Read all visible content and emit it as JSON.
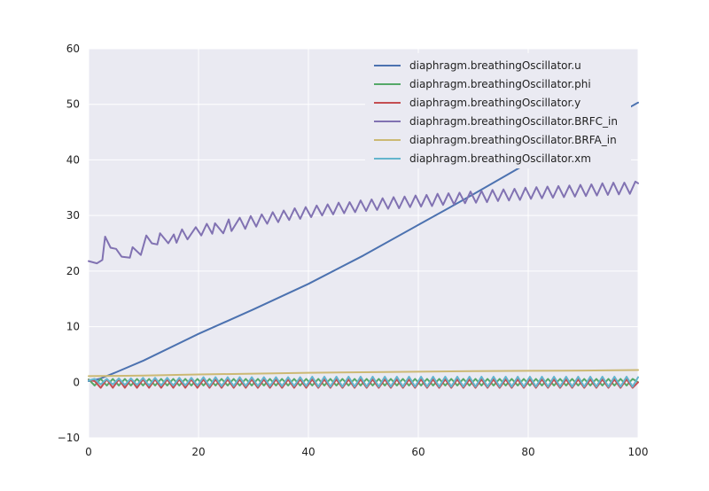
{
  "chart_data": {
    "type": "line",
    "title": "",
    "xlabel": "",
    "ylabel": "",
    "xlim": [
      0,
      100
    ],
    "ylim": [
      -10,
      60
    ],
    "x_ticks": [
      "0",
      "20",
      "40",
      "60",
      "80",
      "100"
    ],
    "y_ticks": [
      "−10",
      "0",
      "10",
      "20",
      "30",
      "40",
      "50",
      "60"
    ],
    "grid": true,
    "legend_position": "top-right",
    "plot_background": "#EAEAF2",
    "series": [
      {
        "name": "diaphragm.breathingOscillator.u",
        "color": "#4C72B0",
        "x": [
          0,
          2,
          5,
          10,
          20,
          30,
          40,
          50,
          60,
          70,
          80,
          90,
          100
        ],
        "y": [
          0.2,
          0.6,
          1.8,
          3.9,
          8.7,
          13.1,
          17.7,
          22.8,
          28.3,
          33.8,
          39.5,
          44.9,
          50.3
        ]
      },
      {
        "name": "diaphragm.breathingOscillator.phi",
        "color": "#55A868",
        "x": [
          0,
          1.1,
          2.2,
          3.3,
          4.4,
          5.5,
          6.6,
          7.7,
          8.8,
          9.9,
          11,
          12.1,
          13.2,
          14.3,
          15.4,
          16.5,
          17.6,
          18.7,
          19.8,
          20.9,
          22,
          23.1,
          24.2,
          25.3,
          26.4,
          27.5,
          28.6,
          29.7,
          30.8,
          31.9,
          33,
          34.1,
          35.2,
          36.3,
          37.4,
          38.5,
          39.6,
          40.7,
          41.8,
          42.9,
          44,
          45.1,
          46.2,
          47.3,
          48.4,
          49.5,
          50.6,
          51.7,
          52.8,
          53.9,
          55,
          56.1,
          57.2,
          58.3,
          59.4,
          60.5,
          61.6,
          62.7,
          63.8,
          64.9,
          66,
          67.1,
          68.2,
          69.3,
          70.4,
          71.5,
          72.6,
          73.7,
          74.8,
          75.9,
          77,
          78.1,
          79.2,
          80.3,
          81.4,
          82.5,
          83.6,
          84.7,
          85.8,
          86.9,
          88,
          89.1,
          90.2,
          91.3,
          92.4,
          93.5,
          94.6,
          95.7,
          96.8,
          97.9,
          99,
          100
        ],
        "y": [
          0.5,
          -0.6,
          0.6,
          -0.6,
          0.6,
          -0.6,
          0.6,
          -0.6,
          0.6,
          -0.6,
          0.6,
          -0.6,
          0.6,
          -0.6,
          0.6,
          -0.6,
          0.6,
          -0.6,
          0.6,
          -0.6,
          0.6,
          -0.6,
          0.6,
          -0.6,
          0.6,
          -0.6,
          0.6,
          -0.6,
          0.6,
          -0.6,
          0.6,
          -0.6,
          0.6,
          -0.6,
          0.6,
          -0.6,
          0.6,
          -0.6,
          0.6,
          -0.6,
          0.6,
          -0.6,
          0.6,
          -0.6,
          0.6,
          -0.6,
          0.6,
          -0.6,
          0.6,
          -0.6,
          0.6,
          -0.6,
          0.6,
          -0.6,
          0.6,
          -0.6,
          0.6,
          -0.6,
          0.6,
          -0.6,
          0.6,
          -0.6,
          0.6,
          -0.6,
          0.6,
          -0.6,
          0.6,
          -0.6,
          0.6,
          -0.6,
          0.6,
          -0.6,
          0.6,
          -0.6,
          0.6,
          -0.6,
          0.6,
          -0.6,
          0.6,
          -0.6,
          0.6,
          -0.6,
          0.6,
          -0.6,
          0.6,
          -0.6,
          0.6,
          -0.6,
          0.6,
          -0.6,
          0.6,
          0.0
        ]
      },
      {
        "name": "diaphragm.breathingOscillator.y",
        "color": "#C44E52",
        "x": [
          0,
          1.1,
          2.2,
          3.3,
          4.4,
          5.5,
          6.6,
          7.7,
          8.8,
          9.9,
          11,
          12.1,
          13.2,
          14.3,
          15.4,
          16.5,
          17.6,
          18.7,
          19.8,
          20.9,
          22,
          23.1,
          24.2,
          25.3,
          26.4,
          27.5,
          28.6,
          29.7,
          30.8,
          31.9,
          33,
          34.1,
          35.2,
          36.3,
          37.4,
          38.5,
          39.6,
          40.7,
          41.8,
          42.9,
          44,
          45.1,
          46.2,
          47.3,
          48.4,
          49.5,
          50.6,
          51.7,
          52.8,
          53.9,
          55,
          56.1,
          57.2,
          58.3,
          59.4,
          60.5,
          61.6,
          62.7,
          63.8,
          64.9,
          66,
          67.1,
          68.2,
          69.3,
          70.4,
          71.5,
          72.6,
          73.7,
          74.8,
          75.9,
          77,
          78.1,
          79.2,
          80.3,
          81.4,
          82.5,
          83.6,
          84.7,
          85.8,
          86.9,
          88,
          89.1,
          90.2,
          91.3,
          92.4,
          93.5,
          94.6,
          95.7,
          96.8,
          97.9,
          99,
          100
        ],
        "y": [
          0.4,
          0.2,
          -1.0,
          0.5,
          -1.0,
          0.5,
          -1.0,
          0.5,
          -1.0,
          0.5,
          -1.0,
          0.5,
          -1.0,
          0.5,
          -1.0,
          0.5,
          -1.0,
          0.5,
          -1.0,
          0.5,
          -1.0,
          0.5,
          -1.0,
          0.5,
          -1.0,
          0.5,
          -1.0,
          0.5,
          -1.0,
          0.5,
          -1.0,
          0.5,
          -1.0,
          0.5,
          -1.0,
          0.5,
          -1.0,
          0.5,
          -1.0,
          0.5,
          -1.0,
          0.5,
          -1.0,
          0.5,
          -1.0,
          0.5,
          -1.0,
          0.5,
          -1.0,
          0.5,
          -1.0,
          0.5,
          -1.0,
          0.5,
          -1.0,
          0.5,
          -1.0,
          0.5,
          -1.0,
          0.5,
          -1.0,
          0.5,
          -1.0,
          0.5,
          -1.0,
          0.5,
          -1.0,
          0.5,
          -1.0,
          0.5,
          -1.0,
          0.5,
          -1.0,
          0.5,
          -1.0,
          0.5,
          -1.0,
          0.5,
          -1.0,
          0.5,
          -1.0,
          0.5,
          -1.0,
          0.5,
          -1.0,
          0.5,
          -1.0,
          0.5,
          -1.0,
          0.5,
          -1.0,
          0.0
        ]
      },
      {
        "name": "diaphragm.breathingOscillator.BRFC_in",
        "color": "#8172B2",
        "x": [
          0,
          1.5,
          2.5,
          3,
          4,
          5,
          6,
          7.5,
          8,
          9.5,
          10.5,
          11.5,
          12.5,
          13,
          14.5,
          15.5,
          16,
          17,
          18,
          19.5,
          20.5,
          21.5,
          22.5,
          23,
          24.5,
          25.5,
          26,
          27.5,
          28.5,
          29.5,
          30.5,
          31.5,
          32.5,
          33.5,
          34.5,
          35.5,
          36.5,
          37.5,
          38.5,
          39.5,
          40.5,
          41.5,
          42.5,
          43.5,
          44.5,
          45.5,
          46.5,
          47.5,
          48.5,
          49.5,
          50.5,
          51.5,
          52.5,
          53.5,
          54.5,
          55.5,
          56.5,
          57.5,
          58.5,
          59.5,
          60.5,
          61.5,
          62.5,
          63.5,
          64.5,
          65.5,
          66.5,
          67.5,
          68.5,
          69.5,
          70.5,
          71.5,
          72.5,
          73.5,
          74.5,
          75.5,
          76.5,
          77.5,
          78.5,
          79.5,
          80.5,
          81.5,
          82.5,
          83.5,
          84.5,
          85.5,
          86.5,
          87.5,
          88.5,
          89.5,
          90.5,
          91.5,
          92.5,
          93.5,
          94.5,
          95.5,
          96.5,
          97.5,
          98.5,
          99.5,
          100
        ],
        "y": [
          21.8,
          21.4,
          22.0,
          26.2,
          24.2,
          24.0,
          22.6,
          22.4,
          24.3,
          22.9,
          26.4,
          25.0,
          24.8,
          26.8,
          25.0,
          26.6,
          25.1,
          27.5,
          25.7,
          27.9,
          26.4,
          28.5,
          26.7,
          28.6,
          26.8,
          29.3,
          27.2,
          29.6,
          27.6,
          29.9,
          28.0,
          30.2,
          28.5,
          30.6,
          28.8,
          30.9,
          29.2,
          31.3,
          29.4,
          31.5,
          29.7,
          31.8,
          30.0,
          32.0,
          30.2,
          32.3,
          30.4,
          32.4,
          30.6,
          32.7,
          30.8,
          32.9,
          31.0,
          33.1,
          31.2,
          33.3,
          31.3,
          33.4,
          31.5,
          33.6,
          31.6,
          33.7,
          31.7,
          33.9,
          31.9,
          34.0,
          32.0,
          34.1,
          32.2,
          34.3,
          32.3,
          34.4,
          32.4,
          34.6,
          32.6,
          34.7,
          32.7,
          34.8,
          32.8,
          35.0,
          33.0,
          35.1,
          33.1,
          35.2,
          33.2,
          35.3,
          33.3,
          35.4,
          33.4,
          35.5,
          33.5,
          35.6,
          33.6,
          35.8,
          33.7,
          35.9,
          33.8,
          35.9,
          33.9,
          36.1,
          35.8
        ]
      },
      {
        "name": "diaphragm.breathingOscillator.BRFA_in",
        "color": "#CCB974",
        "x": [
          0,
          5,
          10,
          20,
          30,
          40,
          50,
          60,
          70,
          80,
          90,
          100
        ],
        "y": [
          1.1,
          1.15,
          1.2,
          1.4,
          1.55,
          1.7,
          1.8,
          1.9,
          2.0,
          2.05,
          2.1,
          2.2
        ]
      },
      {
        "name": "diaphragm.breathingOscillator.xm",
        "color": "#64B5CD",
        "x": [
          0,
          1.1,
          2.2,
          3.3,
          4.4,
          5.5,
          6.6,
          7.7,
          8.8,
          9.9,
          11,
          12.1,
          13.2,
          14.3,
          15.4,
          16.5,
          17.6,
          18.7,
          19.8,
          20.9,
          22,
          23.1,
          24.2,
          25.3,
          26.4,
          27.5,
          28.6,
          29.7,
          30.8,
          31.9,
          33,
          34.1,
          35.2,
          36.3,
          37.4,
          38.5,
          39.6,
          40.7,
          41.8,
          42.9,
          44,
          45.1,
          46.2,
          47.3,
          48.4,
          49.5,
          50.6,
          51.7,
          52.8,
          53.9,
          55,
          56.1,
          57.2,
          58.3,
          59.4,
          60.5,
          61.6,
          62.7,
          63.8,
          64.9,
          66,
          67.1,
          68.2,
          69.3,
          70.4,
          71.5,
          72.6,
          73.7,
          74.8,
          75.9,
          77,
          78.1,
          79.2,
          80.3,
          81.4,
          82.5,
          83.6,
          84.7,
          85.8,
          86.9,
          88,
          89.1,
          90.2,
          91.3,
          92.4,
          93.5,
          94.6,
          95.7,
          96.8,
          97.9,
          99,
          100
        ],
        "y": [
          0.3,
          0.6,
          -0.4,
          0.6,
          -0.4,
          0.7,
          -0.5,
          0.7,
          -0.5,
          0.8,
          -0.6,
          0.8,
          -0.6,
          0.8,
          -0.6,
          0.8,
          -0.6,
          0.8,
          -0.6,
          0.9,
          -0.7,
          0.9,
          -0.7,
          0.9,
          -0.7,
          0.9,
          -0.7,
          0.9,
          -0.7,
          0.9,
          -0.7,
          0.9,
          -0.7,
          0.9,
          -0.7,
          0.9,
          -0.7,
          1.0,
          -0.8,
          1.0,
          -0.8,
          1.0,
          -0.8,
          1.0,
          -0.8,
          1.0,
          -0.8,
          1.0,
          -0.8,
          1.0,
          -0.8,
          1.0,
          -0.8,
          1.0,
          -0.8,
          1.0,
          -0.8,
          1.0,
          -0.8,
          1.0,
          -0.8,
          1.0,
          -0.8,
          1.0,
          -0.8,
          1.0,
          -0.8,
          1.0,
          -0.8,
          1.0,
          -0.8,
          1.0,
          -0.8,
          1.0,
          -0.8,
          1.0,
          -0.8,
          1.0,
          -0.8,
          1.0,
          -0.8,
          1.0,
          -0.8,
          1.0,
          -0.8,
          1.0,
          -0.8,
          1.0,
          -0.8,
          1.0,
          -0.8,
          0.9
        ]
      }
    ]
  }
}
